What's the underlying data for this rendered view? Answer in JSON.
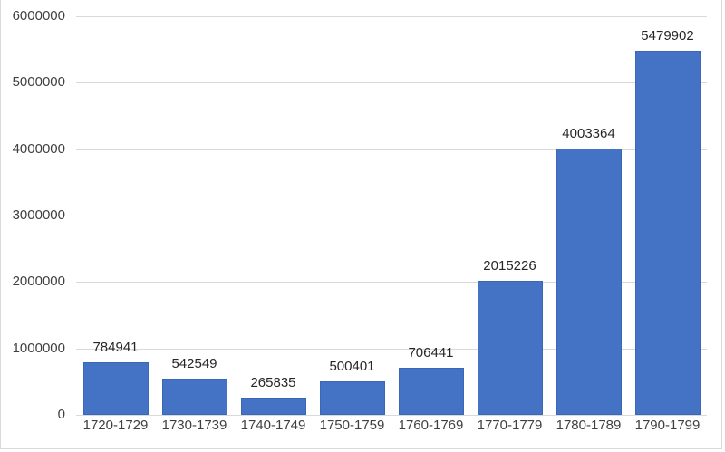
{
  "chart_data": {
    "type": "bar",
    "title": "",
    "xlabel": "",
    "ylabel": "",
    "categories": [
      "1720-1729",
      "1730-1739",
      "1740-1749",
      "1750-1759",
      "1760-1769",
      "1770-1779",
      "1780-1789",
      "1790-1799"
    ],
    "values": [
      784941,
      542549,
      265835,
      500401,
      706441,
      2015226,
      4003364,
      5479902
    ],
    "data_labels": [
      "784941",
      "542549",
      "265835",
      "500401",
      "706441",
      "2015226",
      "4003364",
      "5479902"
    ],
    "ylim": [
      0,
      6000000
    ],
    "yticks": [
      "0",
      "1000000",
      "2000000",
      "3000000",
      "4000000",
      "5000000",
      "6000000"
    ],
    "ytick_values": [
      0,
      1000000,
      2000000,
      3000000,
      4000000,
      5000000,
      6000000
    ],
    "grid": true,
    "legend": null,
    "bar_color": "#4472c4"
  }
}
